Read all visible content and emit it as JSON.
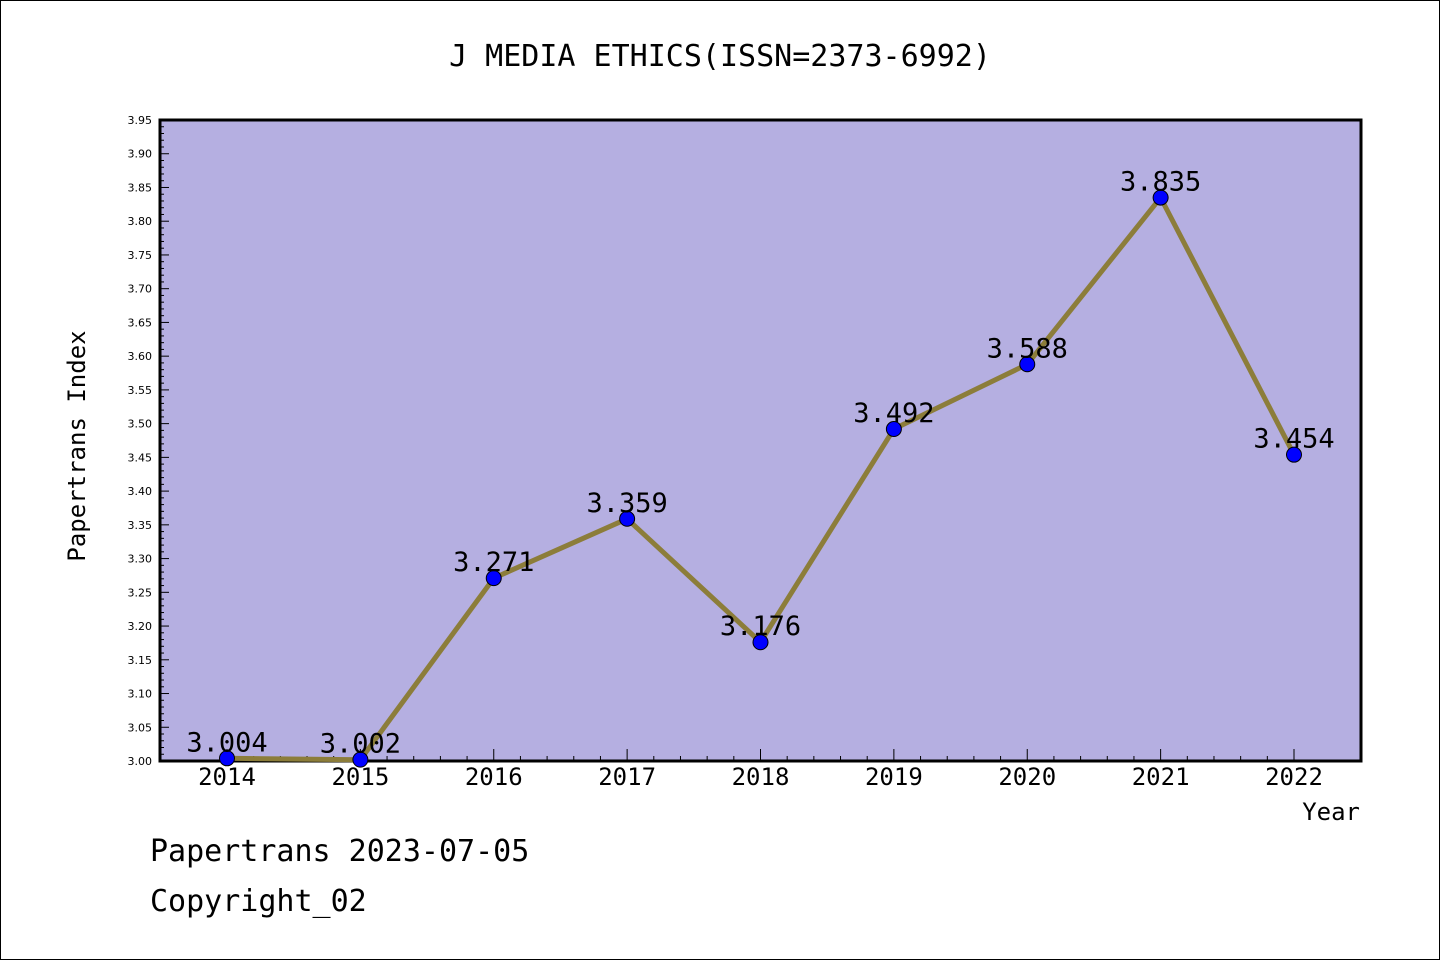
{
  "footer": {
    "line1": "Papertrans 2023-07-05",
    "line2": "Copyright_02"
  },
  "colors": {
    "plot_background": "#b5afe1",
    "line": "#8c7d3a",
    "marker": "#0000ff"
  },
  "chart_data": {
    "type": "line",
    "title": "J MEDIA ETHICS(ISSN=2373-6992)",
    "xlabel": "Year",
    "ylabel": "Papertrans Index",
    "categories": [
      "2014",
      "2015",
      "2016",
      "2017",
      "2018",
      "2019",
      "2020",
      "2021",
      "2022"
    ],
    "series": [
      {
        "values": [
          3.004,
          3.002,
          3.271,
          3.359,
          3.176,
          3.492,
          3.588,
          3.835,
          3.454
        ],
        "labels": [
          "3.004",
          "3.002",
          "3.271",
          "3.359",
          "3.176",
          "3.492",
          "3.588",
          "3.835",
          "3.454"
        ]
      }
    ],
    "ylim": [
      3.0,
      3.95
    ],
    "yticks": [
      "3.00",
      "3.05",
      "3.10",
      "3.15",
      "3.20",
      "3.25",
      "3.30",
      "3.35",
      "3.40",
      "3.45",
      "3.50",
      "3.55",
      "3.60",
      "3.65",
      "3.70",
      "3.75",
      "3.80",
      "3.85",
      "3.90",
      "3.95"
    ],
    "grid": false,
    "legend": "none"
  }
}
